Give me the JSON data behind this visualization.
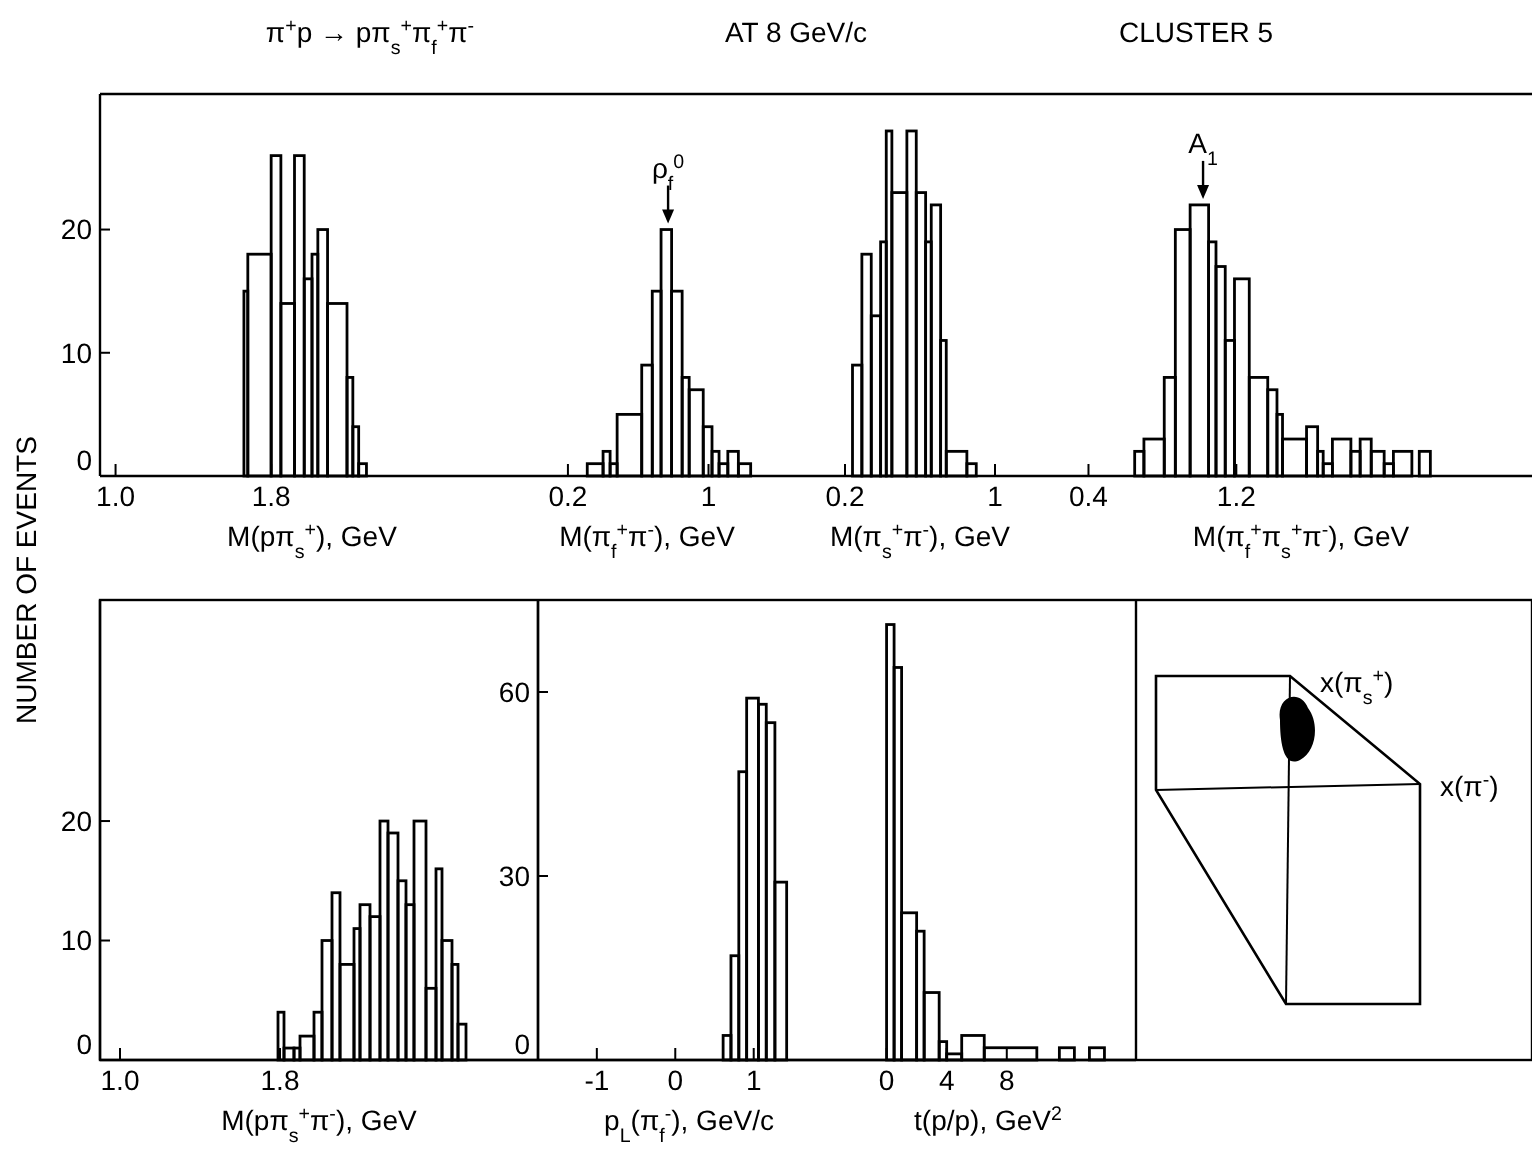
{
  "chart_data": [
    {
      "type": "histogram",
      "title": "π$^{+}$p → pπ$_{s}$$^{+}$π$_{f}$$^{+}$π$^{-}$",
      "ylabel": "NUMBER OF EVENTS",
      "xlabel": "M(pπ$_{s}$$^{+}$), GeV",
      "color": "#000000",
      "bins": [
        1.66,
        1.68,
        1.8,
        1.85,
        1.92,
        1.97,
        2.01,
        2.04,
        2.09,
        2.19,
        2.22,
        2.25,
        2.29
      ],
      "values": [
        15,
        18,
        26,
        14,
        26,
        16,
        18,
        20,
        14,
        8,
        4,
        1
      ],
      "xlim": [
        0.92,
        3.1
      ],
      "xticks": [
        {
          "value": 1,
          "label": "1.0"
        },
        1.8
      ],
      "ylim": [
        0,
        31
      ],
      "yticks": [
        0,
        10,
        20
      ]
    },
    {
      "type": "histogram",
      "xlabel": "M(π$_{f}$$^{+}$π$^{-}$), GeV",
      "color": "#000000",
      "annotations": [
        {
          "text": "ρ$_{f}$$^{0}$",
          "x": 0.77,
          "y": 20
        }
      ],
      "bins": [
        0.31,
        0.4,
        0.44,
        0.48,
        0.62,
        0.68,
        0.73,
        0.79,
        0.85,
        0.89,
        0.97,
        1.02,
        1.06,
        1.11,
        1.17,
        1.24
      ],
      "values": [
        1,
        2,
        1,
        5,
        9,
        15,
        20,
        15,
        8,
        7,
        4,
        2,
        1,
        2,
        1
      ],
      "xlim": [
        -0.05,
        1.35
      ],
      "xticks": [
        0.2,
        1
      ],
      "ylim": [
        0,
        31
      ],
      "tick_labels": "x"
    },
    {
      "type": "histogram",
      "title": "AT 8 GeV/c",
      "xlabel": "M(π$_{s}$$^{+}$π$^{-}$), GeV",
      "color": "#000000",
      "bins": [
        0.24,
        0.29,
        0.34,
        0.39,
        0.42,
        0.45,
        0.53,
        0.58,
        0.63,
        0.66,
        0.71,
        0.74,
        0.85,
        0.9
      ],
      "values": [
        9,
        18,
        13,
        19,
        28,
        23,
        28,
        23,
        19,
        22,
        11,
        2,
        1
      ],
      "xlim": [
        -0.2,
        1.4
      ],
      "xticks": [
        0.2,
        1
      ],
      "ylim": [
        0,
        31
      ],
      "tick_labels": "x"
    },
    {
      "type": "histogram",
      "title": "CLUSTER 5",
      "xlabel": "M(π$_{f}$$^{+}$π$_{s}$$^{+}$π$^{-}$), GeV",
      "color": "#000000",
      "annotations": [
        {
          "text": "A$_{1}$",
          "x": 1.02,
          "y": 22
        }
      ],
      "bins": [
        0.65,
        0.7,
        0.81,
        0.87,
        0.95,
        1.05,
        1.09,
        1.14,
        1.19,
        1.27,
        1.37,
        1.42,
        1.45,
        1.58,
        1.64,
        1.67,
        1.72,
        1.82,
        1.87,
        1.93,
        2.0,
        2.05,
        2.15,
        2.19,
        2.25
      ],
      "values": [
        2,
        3,
        8,
        20,
        22,
        19,
        17,
        11,
        16,
        8,
        7,
        5,
        3,
        4,
        2,
        1,
        3,
        2,
        3,
        2,
        1,
        2,
        0,
        2
      ],
      "xlim": [
        0.3,
        2.8
      ],
      "xticks": [
        0.4,
        1.2
      ],
      "ylim": [
        0,
        31
      ],
      "tick_labels": "x"
    },
    {
      "type": "histogram",
      "xlabel": "M(pπ$_{s}$$^{+}$π$^{-}$), GeV",
      "color": "#000000",
      "bins": [
        1.79,
        1.82,
        1.87,
        1.9,
        1.97,
        2.01,
        2.06,
        2.1,
        2.17,
        2.2,
        2.25,
        2.3,
        2.34,
        2.39,
        2.43,
        2.47,
        2.53,
        2.58,
        2.61,
        2.66,
        2.69,
        2.73
      ],
      "values": [
        4,
        1,
        1,
        2,
        4,
        10,
        14,
        8,
        11,
        13,
        12,
        20,
        19,
        15,
        13,
        20,
        6,
        16,
        10,
        8,
        3
      ],
      "xlim": [
        0.9,
        3.09
      ],
      "xticks": [
        {
          "value": 1,
          "label": "1.0"
        },
        1.8
      ],
      "ylim": [
        0,
        38.5
      ],
      "yticks": [
        0,
        10,
        20
      ]
    },
    {
      "type": "histogram",
      "xlabel": "p$_{L}$(π$_{f}$$^{-}$), GeV/c",
      "color": "#000000",
      "bins": [
        0.61,
        0.71,
        0.81,
        0.91,
        1.06,
        1.16,
        1.27,
        1.42
      ],
      "values": [
        4,
        17,
        47,
        59,
        58,
        55,
        29
      ],
      "xlim": [
        -1.75,
        2.1
      ],
      "xticks": [
        -1,
        0,
        1
      ],
      "ylim": [
        0,
        75
      ],
      "yticks": [
        0,
        30,
        60
      ]
    },
    {
      "type": "histogram",
      "xlabel": "t(p/p), GeV$^{2}$",
      "color": "#000000",
      "bins": [
        0,
        0.5,
        1,
        2,
        2.5,
        3.5,
        4,
        5,
        6.5,
        10,
        11.5,
        12.5,
        13.5,
        14.5
      ],
      "values": [
        71,
        64,
        24,
        21,
        11,
        3,
        1,
        4,
        2,
        0,
        2,
        0,
        2
      ],
      "xlim": [
        -3.1,
        16.6
      ],
      "xticks": [
        0,
        4,
        8
      ],
      "ylim": [
        0,
        75
      ],
      "tick_labels": "x"
    },
    {
      "type": "other",
      "annotations": [
        "x(π$_{s}$$^{+}$)",
        "x(π$^{-}$)"
      ]
    }
  ]
}
